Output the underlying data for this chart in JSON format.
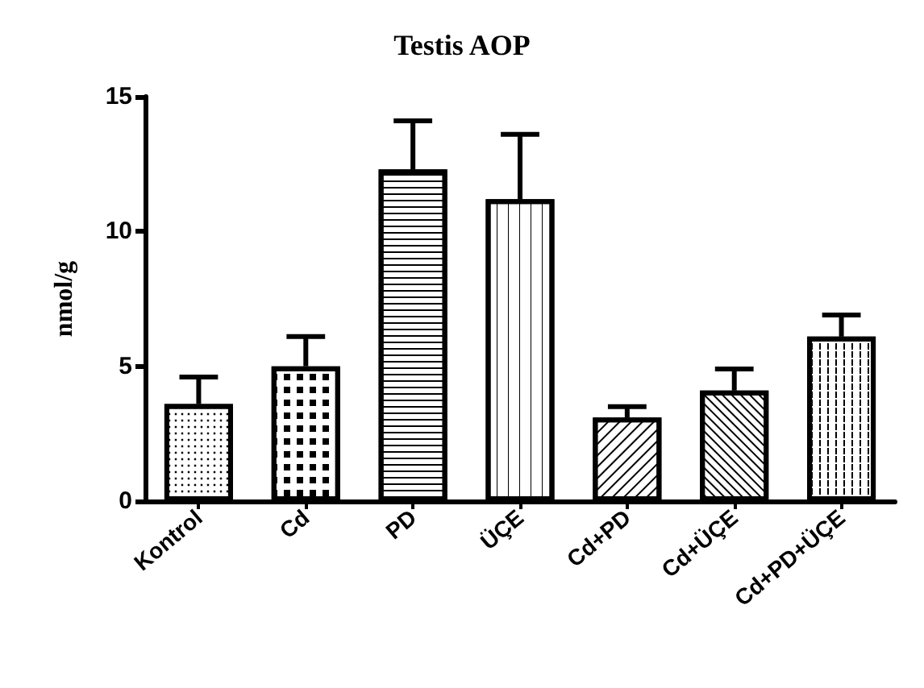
{
  "chart_data": {
    "type": "bar",
    "title": "Testis AOP",
    "ylabel": "nmol/g",
    "categories": [
      "Kontrol",
      "Cd",
      "PD",
      "ÜÇE",
      "Cd+PD",
      "Cd+ÜÇE",
      "Cd+PD+ÜÇE"
    ],
    "values": [
      3.6,
      5.0,
      12.3,
      11.2,
      3.1,
      4.1,
      6.1
    ],
    "errors": [
      [
        3.6,
        4.6
      ],
      [
        5.0,
        6.1
      ],
      [
        12.3,
        14.1
      ],
      [
        11.2,
        13.6
      ],
      [
        3.1,
        3.5
      ],
      [
        4.1,
        4.9
      ],
      [
        6.1,
        6.9
      ]
    ],
    "color": "#ffffff",
    "ylim": [
      0,
      15
    ],
    "yticks": [
      0,
      5,
      10,
      15
    ],
    "grid": false
  }
}
